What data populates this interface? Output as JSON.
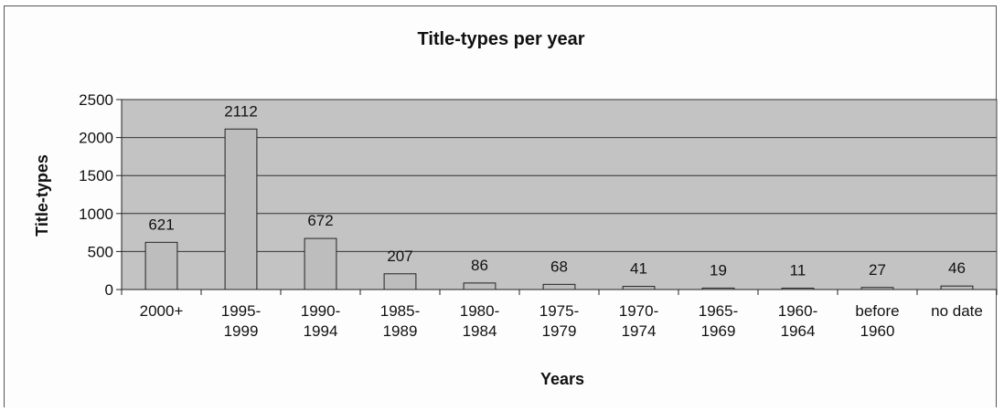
{
  "chart_data": {
    "type": "bar",
    "title": "Title-types per year",
    "xlabel": "Years",
    "ylabel": "Title-types",
    "ylim": [
      0,
      2500
    ],
    "yticks": [
      0,
      500,
      1000,
      1500,
      2000,
      2500
    ],
    "grid": true,
    "legend": "none",
    "categories": [
      [
        "2000+"
      ],
      [
        "1995-",
        "1999"
      ],
      [
        "1990-",
        "1994"
      ],
      [
        "1985-",
        "1989"
      ],
      [
        "1980-",
        "1984"
      ],
      [
        "1975-",
        "1979"
      ],
      [
        "1970-",
        "1974"
      ],
      [
        "1965-",
        "1969"
      ],
      [
        "1960-",
        "1964"
      ],
      [
        "before",
        "1960"
      ],
      [
        "no date"
      ]
    ],
    "values": [
      621,
      2112,
      672,
      207,
      86,
      68,
      41,
      19,
      11,
      27,
      46
    ],
    "colors": {
      "plot_background": "#c3c3c3",
      "bar_fill": "#bdbdbd",
      "bar_stroke": "#222222",
      "gridline": "#333333"
    }
  }
}
